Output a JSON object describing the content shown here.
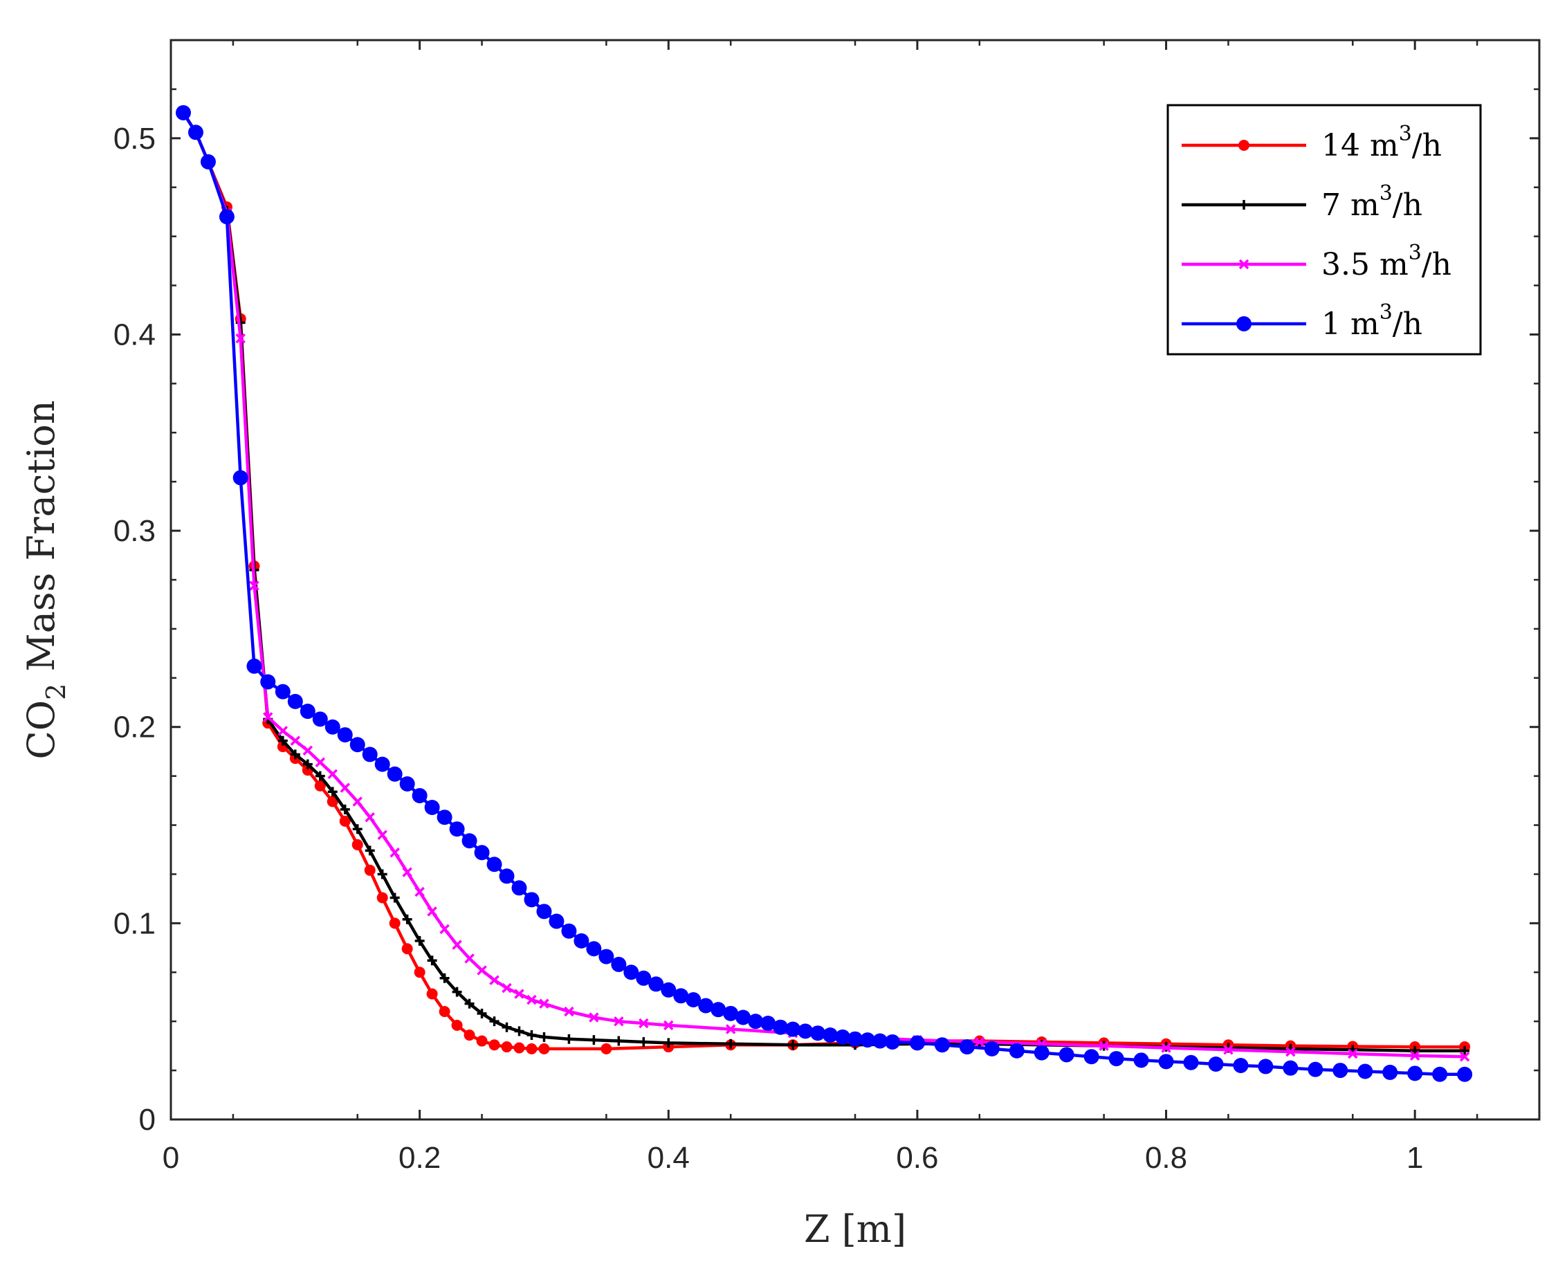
{
  "chart_data": {
    "type": "line",
    "xlabel": "Z [m]",
    "ylabel": {
      "main": "CO",
      "subscript": "2",
      "rest": " Mass Fraction"
    },
    "xlim": [
      0,
      1.1
    ],
    "ylim": [
      0,
      0.55
    ],
    "xticks": [
      0,
      0.2,
      0.4,
      0.6,
      0.8,
      1
    ],
    "xtick_labels": [
      "0",
      "0.2",
      "0.4",
      "0.6",
      "0.8",
      "1"
    ],
    "yticks": [
      0,
      0.1,
      0.2,
      0.3,
      0.4,
      0.5
    ],
    "ytick_labels": [
      "0",
      "0.1",
      "0.2",
      "0.3",
      "0.4",
      "0.5"
    ],
    "grid": false,
    "legend_position": "top-right",
    "series": [
      {
        "name": "14 m³/h",
        "label": {
          "pre": "14 m",
          "sup": "3",
          "post": "/h"
        },
        "color": "#ff0000",
        "marker": "dot",
        "x": [
          0.01,
          0.02,
          0.03,
          0.045,
          0.056,
          0.067,
          0.078,
          0.09,
          0.1,
          0.11,
          0.12,
          0.13,
          0.14,
          0.15,
          0.16,
          0.17,
          0.18,
          0.19,
          0.2,
          0.21,
          0.22,
          0.23,
          0.24,
          0.25,
          0.26,
          0.27,
          0.28,
          0.29,
          0.3,
          0.35,
          0.4,
          0.45,
          0.5,
          0.55,
          0.6,
          0.65,
          0.7,
          0.75,
          0.8,
          0.85,
          0.9,
          0.95,
          1.0,
          1.04
        ],
        "y": [
          0.513,
          0.503,
          0.488,
          0.465,
          0.408,
          0.282,
          0.202,
          0.19,
          0.184,
          0.178,
          0.17,
          0.162,
          0.152,
          0.14,
          0.127,
          0.113,
          0.1,
          0.087,
          0.075,
          0.064,
          0.055,
          0.048,
          0.043,
          0.04,
          0.038,
          0.037,
          0.0365,
          0.036,
          0.036,
          0.036,
          0.037,
          0.038,
          0.038,
          0.039,
          0.04,
          0.04,
          0.0395,
          0.039,
          0.0385,
          0.038,
          0.0375,
          0.0372,
          0.037,
          0.037
        ]
      },
      {
        "name": "7 m³/h",
        "label": {
          "pre": "7 m",
          "sup": "3",
          "post": "/h"
        },
        "color": "#000000",
        "marker": "plus",
        "x": [
          0.01,
          0.02,
          0.03,
          0.045,
          0.056,
          0.067,
          0.078,
          0.09,
          0.1,
          0.11,
          0.12,
          0.13,
          0.14,
          0.15,
          0.16,
          0.17,
          0.18,
          0.19,
          0.2,
          0.21,
          0.22,
          0.23,
          0.24,
          0.25,
          0.26,
          0.27,
          0.28,
          0.29,
          0.3,
          0.32,
          0.34,
          0.36,
          0.38,
          0.4,
          0.45,
          0.5,
          0.55,
          0.6,
          0.65,
          0.7,
          0.75,
          0.8,
          0.85,
          0.9,
          0.95,
          1.0,
          1.04
        ],
        "y": [
          0.513,
          0.503,
          0.488,
          0.463,
          0.406,
          0.28,
          0.204,
          0.193,
          0.186,
          0.181,
          0.175,
          0.167,
          0.158,
          0.148,
          0.137,
          0.125,
          0.113,
          0.102,
          0.091,
          0.081,
          0.072,
          0.065,
          0.059,
          0.054,
          0.05,
          0.047,
          0.045,
          0.043,
          0.042,
          0.041,
          0.0405,
          0.04,
          0.0395,
          0.039,
          0.0385,
          0.038,
          0.038,
          0.0385,
          0.0385,
          0.038,
          0.0375,
          0.037,
          0.0365,
          0.036,
          0.0355,
          0.035,
          0.035
        ]
      },
      {
        "name": "3.5 m³/h",
        "label": {
          "pre": "3.5 m",
          "sup": "3",
          "post": "/h"
        },
        "color": "#ff00ff",
        "marker": "x",
        "x": [
          0.01,
          0.02,
          0.03,
          0.045,
          0.056,
          0.067,
          0.078,
          0.09,
          0.1,
          0.11,
          0.12,
          0.13,
          0.14,
          0.15,
          0.16,
          0.17,
          0.18,
          0.19,
          0.2,
          0.21,
          0.22,
          0.23,
          0.24,
          0.25,
          0.26,
          0.27,
          0.28,
          0.29,
          0.3,
          0.32,
          0.34,
          0.36,
          0.38,
          0.4,
          0.45,
          0.5,
          0.55,
          0.6,
          0.65,
          0.7,
          0.75,
          0.8,
          0.85,
          0.9,
          0.95,
          1.0,
          1.04
        ],
        "y": [
          0.513,
          0.503,
          0.488,
          0.462,
          0.398,
          0.272,
          0.205,
          0.198,
          0.193,
          0.188,
          0.182,
          0.176,
          0.169,
          0.162,
          0.154,
          0.145,
          0.136,
          0.126,
          0.116,
          0.106,
          0.097,
          0.089,
          0.082,
          0.076,
          0.071,
          0.067,
          0.064,
          0.061,
          0.059,
          0.055,
          0.052,
          0.05,
          0.049,
          0.048,
          0.046,
          0.044,
          0.042,
          0.0405,
          0.0395,
          0.0385,
          0.0375,
          0.0365,
          0.0355,
          0.0345,
          0.0335,
          0.0325,
          0.032
        ]
      },
      {
        "name": "1 m³/h",
        "label": {
          "pre": "1 m",
          "sup": "3",
          "post": "/h"
        },
        "color": "#0000ff",
        "marker": "dot",
        "x": [
          0.01,
          0.02,
          0.03,
          0.045,
          0.056,
          0.067,
          0.078,
          0.09,
          0.1,
          0.11,
          0.12,
          0.13,
          0.14,
          0.15,
          0.16,
          0.17,
          0.18,
          0.19,
          0.2,
          0.21,
          0.22,
          0.23,
          0.24,
          0.25,
          0.26,
          0.27,
          0.28,
          0.29,
          0.3,
          0.31,
          0.32,
          0.33,
          0.34,
          0.35,
          0.36,
          0.37,
          0.38,
          0.39,
          0.4,
          0.41,
          0.42,
          0.43,
          0.44,
          0.45,
          0.46,
          0.47,
          0.48,
          0.49,
          0.5,
          0.51,
          0.52,
          0.53,
          0.54,
          0.55,
          0.56,
          0.57,
          0.58,
          0.6,
          0.62,
          0.64,
          0.66,
          0.68,
          0.7,
          0.72,
          0.74,
          0.76,
          0.78,
          0.8,
          0.82,
          0.84,
          0.86,
          0.88,
          0.9,
          0.92,
          0.94,
          0.96,
          0.98,
          1.0,
          1.02,
          1.04
        ],
        "y": [
          0.513,
          0.503,
          0.488,
          0.46,
          0.327,
          0.231,
          0.223,
          0.218,
          0.213,
          0.208,
          0.204,
          0.2,
          0.196,
          0.191,
          0.186,
          0.181,
          0.176,
          0.171,
          0.165,
          0.159,
          0.154,
          0.148,
          0.142,
          0.136,
          0.13,
          0.124,
          0.118,
          0.112,
          0.106,
          0.101,
          0.096,
          0.091,
          0.087,
          0.083,
          0.079,
          0.075,
          0.072,
          0.069,
          0.066,
          0.063,
          0.061,
          0.058,
          0.056,
          0.054,
          0.052,
          0.05,
          0.049,
          0.047,
          0.046,
          0.045,
          0.044,
          0.043,
          0.042,
          0.041,
          0.0405,
          0.04,
          0.0395,
          0.039,
          0.038,
          0.037,
          0.036,
          0.035,
          0.034,
          0.033,
          0.032,
          0.031,
          0.0302,
          0.0295,
          0.029,
          0.0282,
          0.0275,
          0.027,
          0.0262,
          0.0255,
          0.025,
          0.0245,
          0.024,
          0.0235,
          0.023,
          0.023
        ]
      }
    ]
  }
}
